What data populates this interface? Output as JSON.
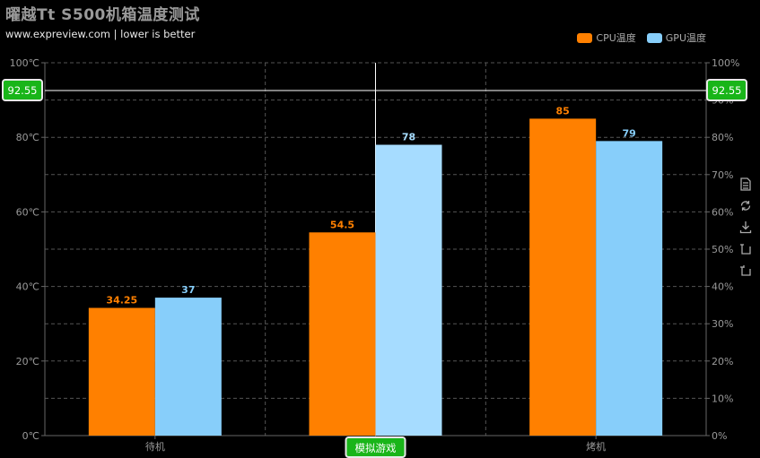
{
  "title": "曜越Tt S500机箱温度测试",
  "subtitle": "www.expreview.com  |  lower is better",
  "toolbox": [
    "data-view-icon",
    "restore-icon",
    "save-image-icon",
    "bar-switch-icon",
    "stack-switch-icon"
  ],
  "colors": {
    "cpu": "#ff8000",
    "gpu": "#87cefa",
    "gpu_highlight": "#a6dcff",
    "marker": "#19b519"
  },
  "pointer": {
    "value_label": "92.55",
    "category_label": "模拟游戏"
  },
  "chart_data": {
    "type": "bar",
    "categories": [
      "待机",
      "模拟游戏",
      "烤机"
    ],
    "series": [
      {
        "name": "CPU温度",
        "values": [
          34.25,
          54.5,
          85
        ]
      },
      {
        "name": "GPU温度",
        "values": [
          37,
          78,
          79
        ]
      }
    ],
    "yaxis_left": {
      "min": 0,
      "max": 100,
      "ticks": [
        "0℃",
        "20℃",
        "40℃",
        "60℃",
        "80℃",
        "100℃"
      ]
    },
    "yaxis_right": {
      "min": 0,
      "max": 100,
      "ticks": [
        "0%",
        "10%",
        "20%",
        "30%",
        "40%",
        "50%",
        "60%",
        "70%",
        "80%",
        "90%",
        "100%"
      ]
    },
    "grid": true,
    "legend_position": "top-right"
  }
}
